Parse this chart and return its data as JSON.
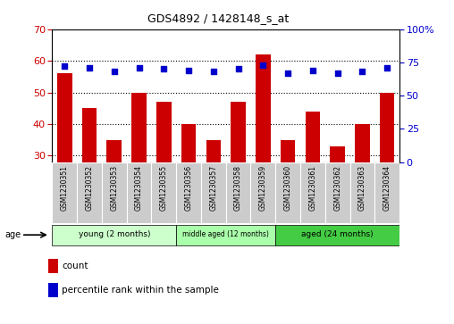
{
  "title": "GDS4892 / 1428148_s_at",
  "samples": [
    "GSM1230351",
    "GSM1230352",
    "GSM1230353",
    "GSM1230354",
    "GSM1230355",
    "GSM1230356",
    "GSM1230357",
    "GSM1230358",
    "GSM1230359",
    "GSM1230360",
    "GSM1230361",
    "GSM1230362",
    "GSM1230363",
    "GSM1230364"
  ],
  "counts": [
    56,
    45,
    35,
    50,
    47,
    40,
    35,
    47,
    62,
    35,
    44,
    33,
    40,
    50
  ],
  "percentiles": [
    72,
    71,
    68,
    71,
    70,
    69,
    68,
    70,
    73,
    67,
    69,
    67,
    68,
    71
  ],
  "ylim_left": [
    28,
    70
  ],
  "ylim_right": [
    0,
    100
  ],
  "yticks_left": [
    30,
    40,
    50,
    60,
    70
  ],
  "yticks_right": [
    0,
    25,
    50,
    75,
    100
  ],
  "groups": [
    {
      "label": "young (2 months)",
      "start": 0,
      "end": 5
    },
    {
      "label": "middle aged (12 months)",
      "start": 5,
      "end": 9
    },
    {
      "label": "aged (24 months)",
      "start": 9,
      "end": 14
    }
  ],
  "group_colors": [
    "#CCFFCC",
    "#AAFFAA",
    "#44CC44"
  ],
  "bar_color": "#CC0000",
  "dot_color": "#0000CC",
  "axis_color_left": "#CC0000",
  "axis_color_right": "#0000CC",
  "plot_bg_color": "#FFFFFF",
  "xtick_bg_color": "#CCCCCC"
}
